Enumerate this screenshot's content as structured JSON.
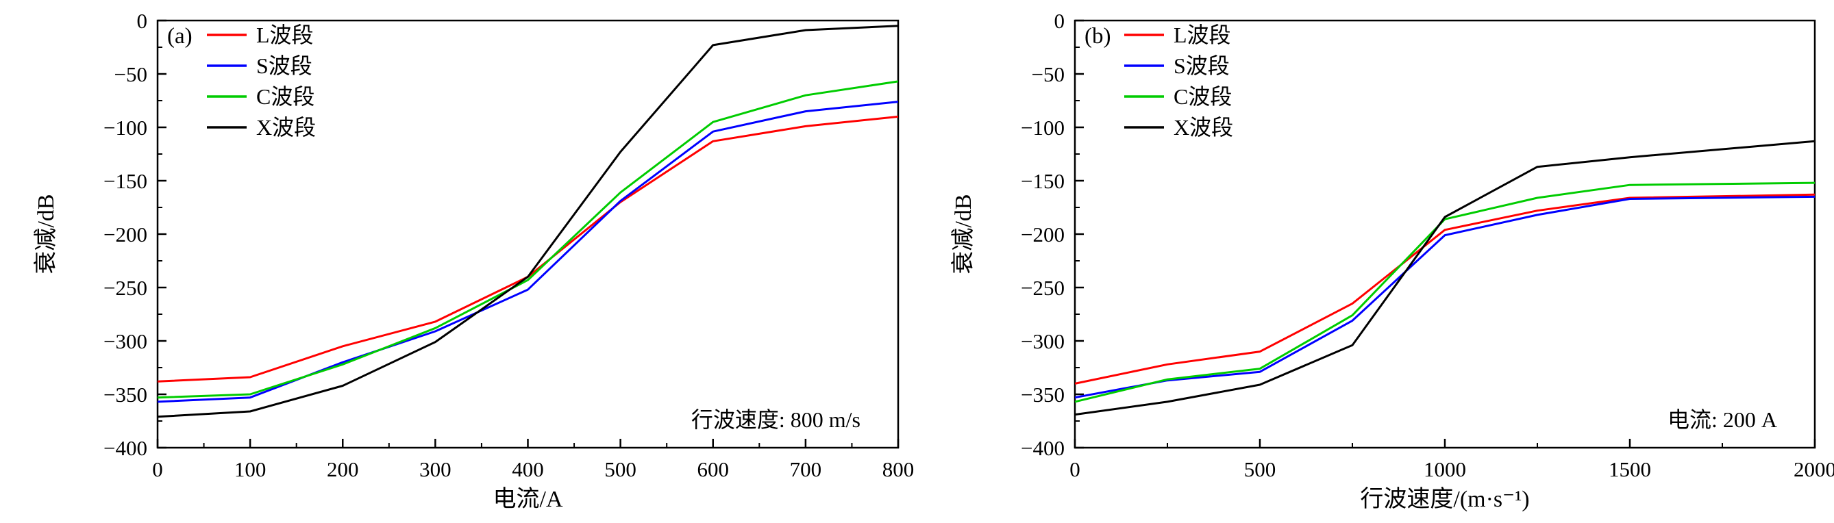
{
  "figure": {
    "background": "#ffffff",
    "axis_color": "#000000"
  },
  "chart_data": [
    {
      "type": "line",
      "panel_label": "(a)",
      "xlabel": "电流/A",
      "ylabel": "衰减/dB",
      "annotation": "行波速度: 800 m/s",
      "xlim": [
        0,
        800
      ],
      "ylim": [
        -400,
        0
      ],
      "xticks": [
        0,
        100,
        200,
        300,
        400,
        500,
        600,
        700,
        800
      ],
      "yticks": [
        0,
        -50,
        -100,
        -150,
        -200,
        -250,
        -300,
        -350,
        -400
      ],
      "legend_position": "top-left",
      "grid": false,
      "x": [
        0,
        100,
        200,
        300,
        400,
        500,
        600,
        700,
        800
      ],
      "series": [
        {
          "name": "L波段",
          "color": "#ff0000",
          "values": [
            -338,
            -334,
            -305,
            -282,
            -240,
            -170,
            -113,
            -99,
            -90
          ]
        },
        {
          "name": "S波段",
          "color": "#0000ff",
          "values": [
            -357,
            -353,
            -320,
            -291,
            -252,
            -169,
            -104,
            -85,
            -76
          ]
        },
        {
          "name": "C波段",
          "color": "#00cc00",
          "values": [
            -353,
            -350,
            -322,
            -288,
            -243,
            -161,
            -95,
            -70,
            -57
          ]
        },
        {
          "name": "X波段",
          "color": "#000000",
          "values": [
            -371,
            -366,
            -342,
            -301,
            -240,
            -123,
            -23,
            -9,
            -5
          ]
        }
      ]
    },
    {
      "type": "line",
      "panel_label": "(b)",
      "xlabel": "行波速度/(m·s⁻¹)",
      "ylabel": "衰减/dB",
      "annotation": "电流: 200 A",
      "xlim": [
        0,
        2000
      ],
      "ylim": [
        -400,
        0
      ],
      "xticks": [
        0,
        500,
        1000,
        1500,
        2000
      ],
      "yticks": [
        0,
        -50,
        -100,
        -150,
        -200,
        -250,
        -300,
        -350,
        -400
      ],
      "legend_position": "top-left",
      "grid": false,
      "x": [
        0,
        250,
        500,
        750,
        1000,
        1250,
        1500,
        2000
      ],
      "series": [
        {
          "name": "L波段",
          "color": "#ff0000",
          "values": [
            -340,
            -322,
            -310,
            -265,
            -196,
            -178,
            -166,
            -163
          ]
        },
        {
          "name": "S波段",
          "color": "#0000ff",
          "values": [
            -353,
            -337,
            -329,
            -281,
            -201,
            -182,
            -167,
            -165
          ]
        },
        {
          "name": "C波段",
          "color": "#00cc00",
          "values": [
            -357,
            -336,
            -326,
            -276,
            -186,
            -166,
            -154,
            -152
          ]
        },
        {
          "name": "X波段",
          "color": "#000000",
          "values": [
            -369,
            -357,
            -341,
            -304,
            -184,
            -137,
            -128,
            -113
          ]
        }
      ]
    }
  ]
}
